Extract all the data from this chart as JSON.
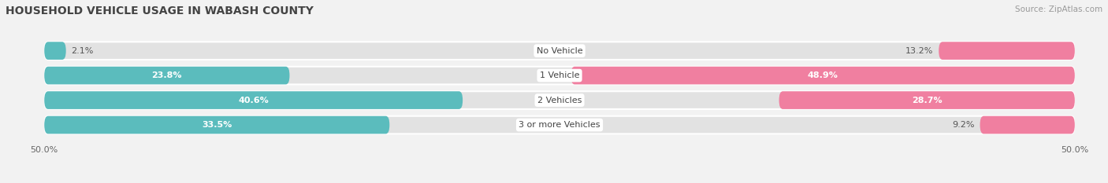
{
  "title": "HOUSEHOLD VEHICLE USAGE IN WABASH COUNTY",
  "source": "Source: ZipAtlas.com",
  "categories": [
    "No Vehicle",
    "1 Vehicle",
    "2 Vehicles",
    "3 or more Vehicles"
  ],
  "owner_values": [
    2.1,
    23.8,
    40.6,
    33.5
  ],
  "renter_values": [
    13.2,
    48.9,
    28.7,
    9.2
  ],
  "owner_color": "#5bbcbd",
  "renter_color": "#f07fa0",
  "bar_height": 0.72,
  "xlim": [
    -50,
    50
  ],
  "xticklabels": [
    "50.0%",
    "50.0%"
  ],
  "background_color": "#f2f2f2",
  "bar_bg_color": "#e2e2e2",
  "title_fontsize": 10,
  "label_fontsize": 8,
  "legend_fontsize": 8,
  "source_fontsize": 7.5
}
